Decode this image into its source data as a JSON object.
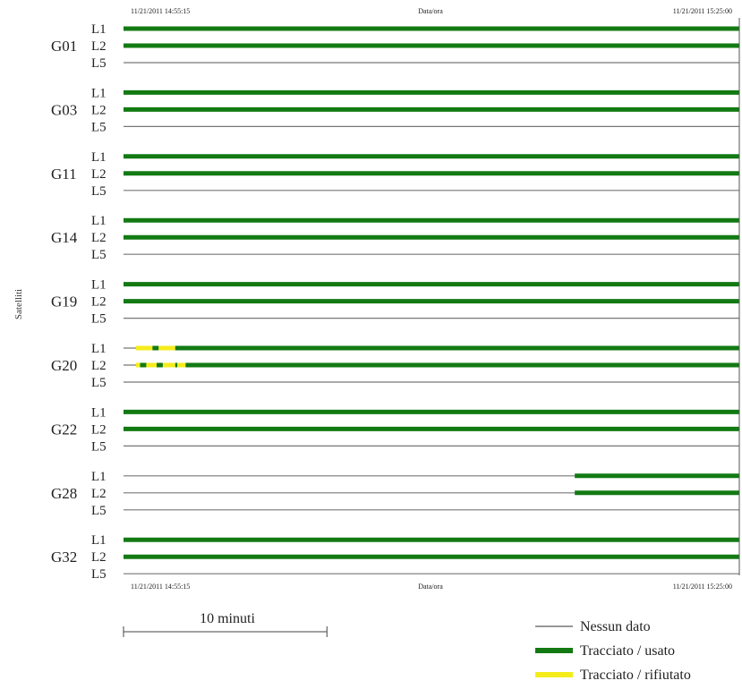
{
  "chart_data": {
    "type": "timeline",
    "x_axis_title": "Data/ora",
    "x_start": "11/21/2011 14:55:15",
    "x_end": "11/21/2011 15:25:00",
    "y_axis_title": "Satelliti",
    "bands": [
      "L1",
      "L2",
      "L5"
    ],
    "status_colors": {
      "none": "#777777",
      "used": "#137a13",
      "rejected": "#f5ec1c"
    },
    "satellites": [
      {
        "name": "G01",
        "tracks": {
          "L1": [
            {
              "from": 0,
              "to": 29.75,
              "status": "used"
            }
          ],
          "L2": [
            {
              "from": 0,
              "to": 29.75,
              "status": "used"
            }
          ],
          "L5": []
        }
      },
      {
        "name": "G03",
        "tracks": {
          "L1": [
            {
              "from": 0,
              "to": 29.75,
              "status": "used"
            }
          ],
          "L2": [
            {
              "from": 0,
              "to": 29.75,
              "status": "used"
            }
          ],
          "L5": []
        }
      },
      {
        "name": "G11",
        "tracks": {
          "L1": [
            {
              "from": 0,
              "to": 29.75,
              "status": "used"
            }
          ],
          "L2": [
            {
              "from": 0,
              "to": 29.75,
              "status": "used"
            }
          ],
          "L5": []
        }
      },
      {
        "name": "G14",
        "tracks": {
          "L1": [
            {
              "from": 0,
              "to": 29.75,
              "status": "used"
            }
          ],
          "L2": [
            {
              "from": 0,
              "to": 29.75,
              "status": "used"
            }
          ],
          "L5": []
        }
      },
      {
        "name": "G19",
        "tracks": {
          "L1": [
            {
              "from": 0,
              "to": 29.75,
              "status": "used"
            }
          ],
          "L2": [
            {
              "from": 0,
              "to": 29.75,
              "status": "used"
            }
          ],
          "L5": []
        }
      },
      {
        "name": "G20",
        "tracks": {
          "L1": [
            {
              "from": 0.6,
              "to": 1.4,
              "status": "rejected"
            },
            {
              "from": 1.4,
              "to": 1.7,
              "status": "used"
            },
            {
              "from": 1.7,
              "to": 2.5,
              "status": "rejected"
            },
            {
              "from": 2.5,
              "to": 29.75,
              "status": "used"
            }
          ],
          "L2": [
            {
              "from": 0.6,
              "to": 0.8,
              "status": "rejected"
            },
            {
              "from": 0.8,
              "to": 1.1,
              "status": "used"
            },
            {
              "from": 1.1,
              "to": 1.6,
              "status": "rejected"
            },
            {
              "from": 1.6,
              "to": 1.9,
              "status": "used"
            },
            {
              "from": 1.9,
              "to": 2.5,
              "status": "rejected"
            },
            {
              "from": 2.5,
              "to": 2.6,
              "status": "used"
            },
            {
              "from": 2.6,
              "to": 3.0,
              "status": "rejected"
            },
            {
              "from": 3.0,
              "to": 29.75,
              "status": "used"
            }
          ],
          "L5": []
        }
      },
      {
        "name": "G22",
        "tracks": {
          "L1": [
            {
              "from": 0,
              "to": 29.75,
              "status": "used"
            }
          ],
          "L2": [
            {
              "from": 0,
              "to": 29.75,
              "status": "used"
            }
          ],
          "L5": []
        }
      },
      {
        "name": "G28",
        "tracks": {
          "L1": [
            {
              "from": 21.8,
              "to": 29.75,
              "status": "used"
            }
          ],
          "L2": [
            {
              "from": 21.8,
              "to": 29.75,
              "status": "used"
            }
          ],
          "L5": []
        }
      },
      {
        "name": "G32",
        "tracks": {
          "L1": [
            {
              "from": 0,
              "to": 29.75,
              "status": "used"
            }
          ],
          "L2": [
            {
              "from": 0,
              "to": 29.75,
              "status": "used"
            }
          ],
          "L5": []
        }
      }
    ],
    "scale_bar": {
      "label": "10 minuti",
      "minutes": 10
    },
    "legend": [
      {
        "label": "Nessun dato",
        "status": "none"
      },
      {
        "label": "Tracciato / usato",
        "status": "used"
      },
      {
        "label": "Tracciato / rifiutato",
        "status": "rejected"
      }
    ]
  }
}
